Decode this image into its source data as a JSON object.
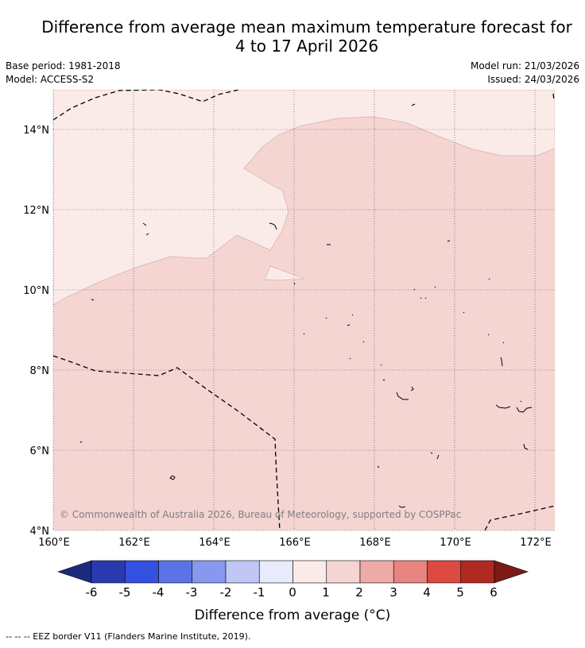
{
  "title": {
    "line1": "Difference from average mean maximum temperature forecast for",
    "line2": "4 to 17 April 2026"
  },
  "meta": {
    "base_period": "Base period: 1981-2018",
    "model": "Model: ACCESS-S2",
    "model_run": "Model run: 21/03/2026",
    "issued": "Issued: 24/03/2026"
  },
  "map": {
    "x_ticks": [
      "160°E",
      "162°E",
      "164°E",
      "166°E",
      "168°E",
      "170°E",
      "172°E"
    ],
    "y_ticks": [
      "4°N",
      "6°N",
      "8°N",
      "10°N",
      "12°N",
      "14°N"
    ],
    "x_range_deg_e": [
      160,
      172.5
    ],
    "y_range_deg_n": [
      4,
      15
    ],
    "gridlines": true,
    "credit": "© Commonwealth of Australia 2026, Bureau of Meteorology, supported by COSPPac",
    "anomaly_classes": [
      {
        "range": "0 to 1",
        "color": "#fbebe8"
      },
      {
        "range": "1 to 2",
        "color": "#f4d5d2"
      }
    ]
  },
  "legend": {
    "tick_labels": [
      "-6",
      "-5",
      "-4",
      "-3",
      "-2",
      "-1",
      "0",
      "1",
      "2",
      "3",
      "4",
      "5",
      "6"
    ],
    "colors": [
      "#1c2a7e",
      "#293ab1",
      "#3450e0",
      "#5c73e6",
      "#8699ee",
      "#c0c7f5",
      "#e8ebfb",
      "#fbebe8",
      "#f4d5d2",
      "#eeaaa6",
      "#e8847f",
      "#dd4a42",
      "#b02a22",
      "#7b1a16"
    ],
    "label": "Difference from average (°C)"
  },
  "footer": {
    "eez_note": "--  --  -- EEZ border V11 (Flanders Marine Institute, 2019)."
  }
}
